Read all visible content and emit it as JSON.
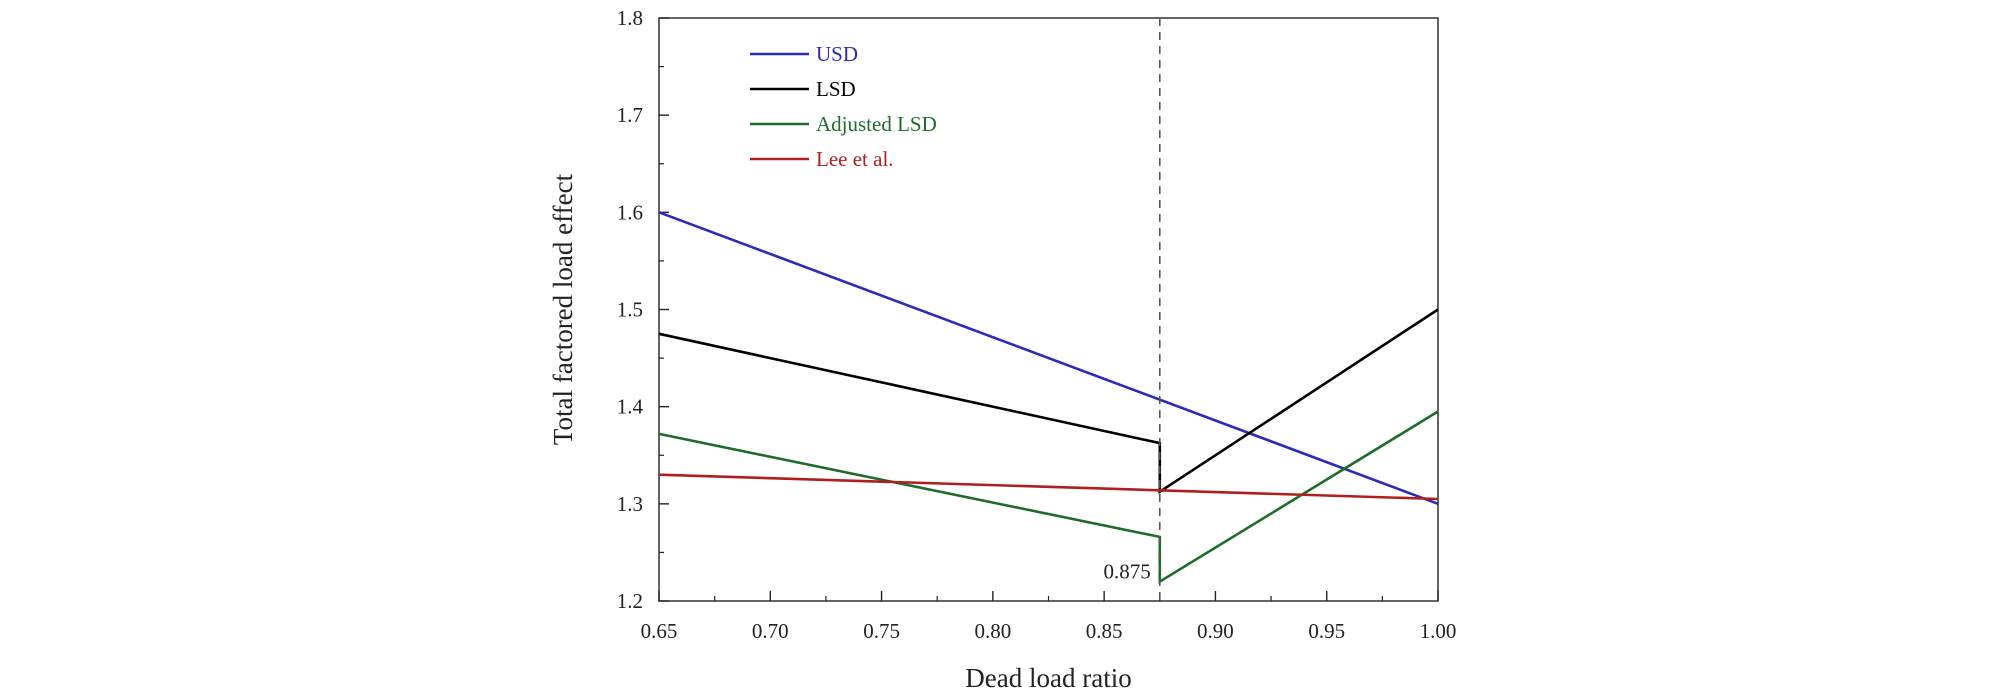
{
  "chart_data": {
    "type": "line",
    "title": "",
    "xlabel": "Dead load ratio",
    "ylabel": "Total factored load effect",
    "xlim": [
      0.65,
      1.0
    ],
    "ylim": [
      1.2,
      1.8
    ],
    "xticks": [
      "0.65",
      "0.70",
      "0.75",
      "0.80",
      "0.85",
      "0.90",
      "0.95",
      "1.00"
    ],
    "yticks": [
      "1.2",
      "1.3",
      "1.4",
      "1.5",
      "1.6",
      "1.7",
      "1.8"
    ],
    "grid": false,
    "legend_position": "top-left",
    "vline": {
      "x": 0.875,
      "style": "dashed"
    },
    "annotation": {
      "text": "0.875",
      "x": 0.875,
      "y": 1.22
    },
    "series": [
      {
        "name": "USD",
        "color": "#2b2bb8",
        "x": [
          0.65,
          1.0
        ],
        "y": [
          1.6,
          1.3
        ]
      },
      {
        "name": "LSD",
        "color": "#000000",
        "x": [
          0.65,
          0.875,
          0.875,
          1.0
        ],
        "y": [
          1.475,
          1.3625,
          1.3125,
          1.5
        ]
      },
      {
        "name": "Adjusted LSD",
        "color": "#1e6b2a",
        "x": [
          0.65,
          0.875,
          0.875,
          1.0
        ],
        "y": [
          1.372,
          1.266,
          1.22,
          1.395
        ]
      },
      {
        "name": "Lee et al.",
        "color": "#b01f1f",
        "x": [
          0.65,
          1.0
        ],
        "y": [
          1.33,
          1.305
        ]
      }
    ]
  }
}
